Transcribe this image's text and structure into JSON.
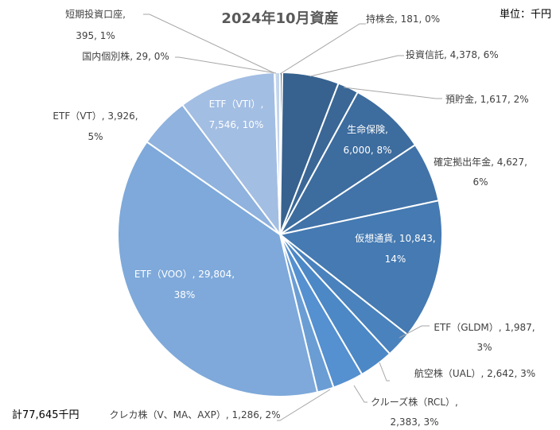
{
  "chart_data": {
    "type": "pie",
    "title": "2024年10月資産",
    "unit_note": "単位：千円",
    "total_note": "計77,645千円",
    "start": "top, clockwise",
    "slices": [
      {
        "name": "持株会",
        "value": 181,
        "percent": "0%",
        "label": [
          "持株会, 181, 0%"
        ],
        "color": "#2f5b88"
      },
      {
        "name": "投資信託",
        "value": 4378,
        "percent": "6%",
        "label": [
          "投資信託, 4,378, 6%"
        ],
        "color": "#37628f"
      },
      {
        "name": "預貯金",
        "value": 1617,
        "percent": "2%",
        "label": [
          "預貯金, 1,617, 2%"
        ],
        "color": "#3a6796"
      },
      {
        "name": "生命保険",
        "value": 6000,
        "percent": "8%",
        "label": [
          "生命保険,",
          "6,000, 8%"
        ],
        "color": "#3d6c9e"
      },
      {
        "name": "確定拠出年金",
        "value": 4627,
        "percent": "6%",
        "label": [
          "確定拠出年金, 4,627,",
          "6%"
        ],
        "color": "#4173a8"
      },
      {
        "name": "仮想通貨",
        "value": 10843,
        "percent": "14%",
        "label": [
          "仮想通貨, 10,843,",
          "14%"
        ],
        "color": "#457ab2"
      },
      {
        "name": "ETF（GLDM）",
        "value": 1987,
        "percent": "3%",
        "label": [
          "ETF（GLDM）, 1,987,",
          "3%"
        ],
        "color": "#4a82bd"
      },
      {
        "name": "航空株（UAL）",
        "value": 2642,
        "percent": "3%",
        "label": [
          "航空株（UAL）, 2,642, 3%"
        ],
        "color": "#4c88c6"
      },
      {
        "name": "クルーズ株（RCL）",
        "value": 2383,
        "percent": "3%",
        "label": [
          "クルーズ株（RCL）,",
          "2,383, 3%"
        ],
        "color": "#5590d0"
      },
      {
        "name": "クレカ株（V、MA、AXP）",
        "value": 1286,
        "percent": "2%",
        "label": [
          "クレカ株（V、MA、AXP）, 1,286, 2%"
        ],
        "color": "#6a9dd4"
      },
      {
        "name": "ETF（VOO）",
        "value": 29804,
        "percent": "38%",
        "label": [
          "ETF（VOO）, 29,804,",
          "38%"
        ],
        "color": "#7ea9da"
      },
      {
        "name": "ETF（VT）",
        "value": 3926,
        "percent": "5%",
        "label": [
          "ETF（VT）, 3,926,",
          "5%"
        ],
        "color": "#8fb2de"
      },
      {
        "name": "ETF（VTI）",
        "value": 7546,
        "percent": "10%",
        "label": [
          "ETF（VTI）,",
          "7,546, 10%"
        ],
        "color": "#a3bee3"
      },
      {
        "name": "国内個別株",
        "value": 29,
        "percent": "0%",
        "label": [
          "国内個別株, 29, 0%"
        ],
        "color": "#b4cae8"
      },
      {
        "name": "短期投資口座",
        "value": 395,
        "percent": "1%",
        "label": [
          "短期投資口座,",
          "395, 1%"
        ],
        "color": "#c3d4ec"
      }
    ]
  }
}
